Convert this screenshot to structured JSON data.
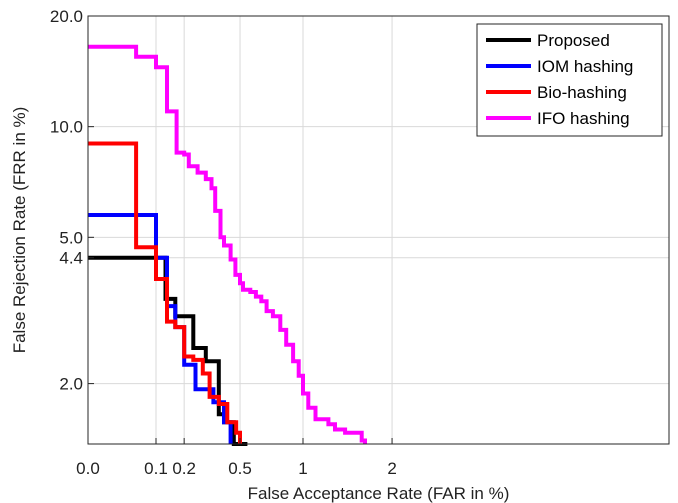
{
  "chart_data": {
    "type": "line",
    "title": "",
    "xlabel": "False Acceptance Rate (FAR in %)",
    "ylabel": "False Rejection Rate (FRR in %)",
    "x_scale": "square-root",
    "y_scale": "log",
    "xlim": [
      0,
      2.6
    ],
    "ylim": [
      1.37,
      20.0
    ],
    "x_ticks": [
      0,
      0.1,
      0.2,
      0.5,
      1,
      2
    ],
    "x_tick_labels": [
      "0.0",
      "0.1",
      "0.2",
      "0.5",
      "1",
      "2"
    ],
    "y_ticks": [
      2.0,
      4.4,
      5.0,
      10.0,
      20.0
    ],
    "y_tick_labels": [
      "2.0",
      "4.4",
      "5.0",
      "10.0",
      "20.0"
    ],
    "grid": true,
    "legend_position": "top-right",
    "series": [
      {
        "name": "Proposed",
        "color": "#000000",
        "points": [
          [
            0,
            4.4
          ],
          [
            0.13,
            4.4
          ],
          [
            0.13,
            3.4
          ],
          [
            0.165,
            3.4
          ],
          [
            0.165,
            3.05
          ],
          [
            0.24,
            3.05
          ],
          [
            0.24,
            2.5
          ],
          [
            0.3,
            2.5
          ],
          [
            0.3,
            2.3
          ],
          [
            0.37,
            2.3
          ],
          [
            0.37,
            1.65
          ],
          [
            0.4,
            1.65
          ],
          [
            0.4,
            1.57
          ],
          [
            0.46,
            1.57
          ],
          [
            0.46,
            1.37
          ],
          [
            0.55,
            1.37
          ]
        ]
      },
      {
        "name": "IOM hashing",
        "color": "#0000ff",
        "points": [
          [
            0,
            5.75
          ],
          [
            0.1,
            5.75
          ],
          [
            0.1,
            4.4
          ],
          [
            0.135,
            4.4
          ],
          [
            0.135,
            3.25
          ],
          [
            0.165,
            3.25
          ],
          [
            0.165,
            2.85
          ],
          [
            0.2,
            2.85
          ],
          [
            0.2,
            2.25
          ],
          [
            0.25,
            2.25
          ],
          [
            0.25,
            1.93
          ],
          [
            0.34,
            1.93
          ],
          [
            0.34,
            1.78
          ],
          [
            0.4,
            1.78
          ],
          [
            0.4,
            1.57
          ],
          [
            0.44,
            1.57
          ],
          [
            0.44,
            1.37
          ]
        ]
      },
      {
        "name": "Bio-hashing",
        "color": "#ff0000",
        "points": [
          [
            0,
            9.0
          ],
          [
            0.05,
            9.0
          ],
          [
            0.05,
            4.7
          ],
          [
            0.1,
            4.7
          ],
          [
            0.1,
            3.85
          ],
          [
            0.135,
            3.85
          ],
          [
            0.135,
            2.95
          ],
          [
            0.165,
            2.95
          ],
          [
            0.165,
            2.85
          ],
          [
            0.2,
            2.85
          ],
          [
            0.2,
            2.37
          ],
          [
            0.24,
            2.37
          ],
          [
            0.24,
            2.32
          ],
          [
            0.285,
            2.32
          ],
          [
            0.285,
            2.13
          ],
          [
            0.32,
            2.13
          ],
          [
            0.32,
            1.84
          ],
          [
            0.37,
            1.84
          ],
          [
            0.37,
            1.76
          ],
          [
            0.42,
            1.76
          ],
          [
            0.42,
            1.57
          ],
          [
            0.475,
            1.57
          ],
          [
            0.475,
            1.47
          ],
          [
            0.5,
            1.47
          ],
          [
            0.5,
            1.37
          ]
        ]
      },
      {
        "name": "IFO hashing",
        "color": "#ff00ff",
        "points": [
          [
            0,
            16.5
          ],
          [
            0.05,
            16.5
          ],
          [
            0.05,
            15.5
          ],
          [
            0.1,
            15.5
          ],
          [
            0.1,
            14.5
          ],
          [
            0.135,
            14.5
          ],
          [
            0.135,
            11.0
          ],
          [
            0.17,
            11.0
          ],
          [
            0.17,
            8.5
          ],
          [
            0.2,
            8.5
          ],
          [
            0.2,
            8.4
          ],
          [
            0.22,
            8.4
          ],
          [
            0.22,
            7.8
          ],
          [
            0.26,
            7.8
          ],
          [
            0.26,
            7.5
          ],
          [
            0.3,
            7.5
          ],
          [
            0.3,
            7.2
          ],
          [
            0.33,
            7.2
          ],
          [
            0.33,
            6.8
          ],
          [
            0.35,
            6.8
          ],
          [
            0.35,
            5.9
          ],
          [
            0.38,
            5.9
          ],
          [
            0.38,
            5.0
          ],
          [
            0.4,
            5.0
          ],
          [
            0.4,
            4.75
          ],
          [
            0.44,
            4.75
          ],
          [
            0.44,
            4.35
          ],
          [
            0.47,
            4.35
          ],
          [
            0.47,
            3.95
          ],
          [
            0.5,
            3.95
          ],
          [
            0.5,
            3.75
          ],
          [
            0.52,
            3.75
          ],
          [
            0.52,
            3.6
          ],
          [
            0.57,
            3.6
          ],
          [
            0.57,
            3.55
          ],
          [
            0.61,
            3.55
          ],
          [
            0.61,
            3.45
          ],
          [
            0.65,
            3.45
          ],
          [
            0.65,
            3.35
          ],
          [
            0.69,
            3.35
          ],
          [
            0.69,
            3.15
          ],
          [
            0.74,
            3.15
          ],
          [
            0.74,
            3.05
          ],
          [
            0.8,
            3.05
          ],
          [
            0.8,
            2.8
          ],
          [
            0.85,
            2.8
          ],
          [
            0.85,
            2.55
          ],
          [
            0.91,
            2.55
          ],
          [
            0.91,
            2.3
          ],
          [
            0.96,
            2.3
          ],
          [
            0.96,
            2.1
          ],
          [
            1.0,
            2.1
          ],
          [
            1.0,
            1.88
          ],
          [
            1.05,
            1.88
          ],
          [
            1.05,
            1.72
          ],
          [
            1.12,
            1.72
          ],
          [
            1.12,
            1.6
          ],
          [
            1.25,
            1.6
          ],
          [
            1.25,
            1.55
          ],
          [
            1.32,
            1.55
          ],
          [
            1.32,
            1.5
          ],
          [
            1.43,
            1.5
          ],
          [
            1.43,
            1.47
          ],
          [
            1.62,
            1.47
          ],
          [
            1.62,
            1.4
          ],
          [
            1.66,
            1.4
          ],
          [
            1.66,
            1.37
          ]
        ]
      }
    ]
  }
}
